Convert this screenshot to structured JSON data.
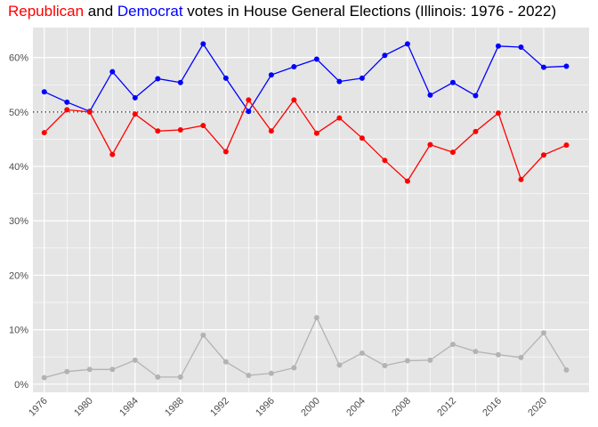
{
  "title": {
    "rep": "Republican",
    "and": " and ",
    "dem": "Democrat",
    "rest": " votes in House General Elections (Illinois: 1976 - 2022)"
  },
  "colors": {
    "rep": "#ff0000",
    "dem": "#0000ff",
    "other": "#b3b3b3",
    "panel": "#e5e5e5",
    "grid": "#ffffff"
  },
  "chart_data": {
    "type": "line",
    "title": "Republican and Democrat votes in House General Elections (Illinois: 1976 - 2022)",
    "xlabel": "",
    "ylabel": "",
    "xlim": [
      1975,
      2024
    ],
    "ylim": [
      -1.5,
      65.5
    ],
    "x_ticks": [
      1976,
      1980,
      1984,
      1988,
      1992,
      1996,
      2000,
      2004,
      2008,
      2012,
      2016,
      2020
    ],
    "y_ticks": [
      0,
      10,
      20,
      30,
      40,
      50,
      60
    ],
    "y_tick_labels": [
      "0%",
      "10%",
      "20%",
      "30%",
      "40%",
      "50%",
      "60%"
    ],
    "reference_line": {
      "y": 50,
      "style": "dotted"
    },
    "x": [
      1976,
      1978,
      1980,
      1982,
      1984,
      1986,
      1988,
      1990,
      1992,
      1994,
      1996,
      1998,
      2000,
      2002,
      2004,
      2006,
      2008,
      2010,
      2012,
      2014,
      2016,
      2018,
      2020,
      2022
    ],
    "series": [
      {
        "key": "dem",
        "values": [
          53.7,
          51.8,
          50.1,
          57.4,
          52.6,
          56.1,
          55.4,
          62.5,
          56.2,
          50.1,
          56.8,
          58.3,
          59.7,
          55.6,
          56.2,
          60.4,
          62.5,
          53.1,
          55.4,
          53.0,
          62.1,
          61.9,
          58.2,
          58.4
        ]
      },
      {
        "key": "rep",
        "values": [
          46.2,
          50.4,
          50.0,
          42.2,
          49.6,
          46.5,
          46.7,
          47.5,
          42.7,
          52.2,
          46.5,
          52.2,
          46.1,
          48.9,
          45.2,
          41.1,
          37.3,
          44.0,
          42.6,
          46.4,
          49.8,
          37.6,
          42.1,
          43.9
        ]
      },
      {
        "key": "other",
        "values": [
          1.2,
          2.3,
          2.7,
          2.7,
          4.4,
          1.3,
          1.3,
          9.0,
          4.1,
          1.6,
          2.0,
          3.0,
          12.2,
          3.5,
          5.7,
          3.4,
          4.3,
          4.4,
          7.3,
          6.0,
          5.4,
          4.9,
          9.4,
          2.6
        ]
      }
    ]
  }
}
